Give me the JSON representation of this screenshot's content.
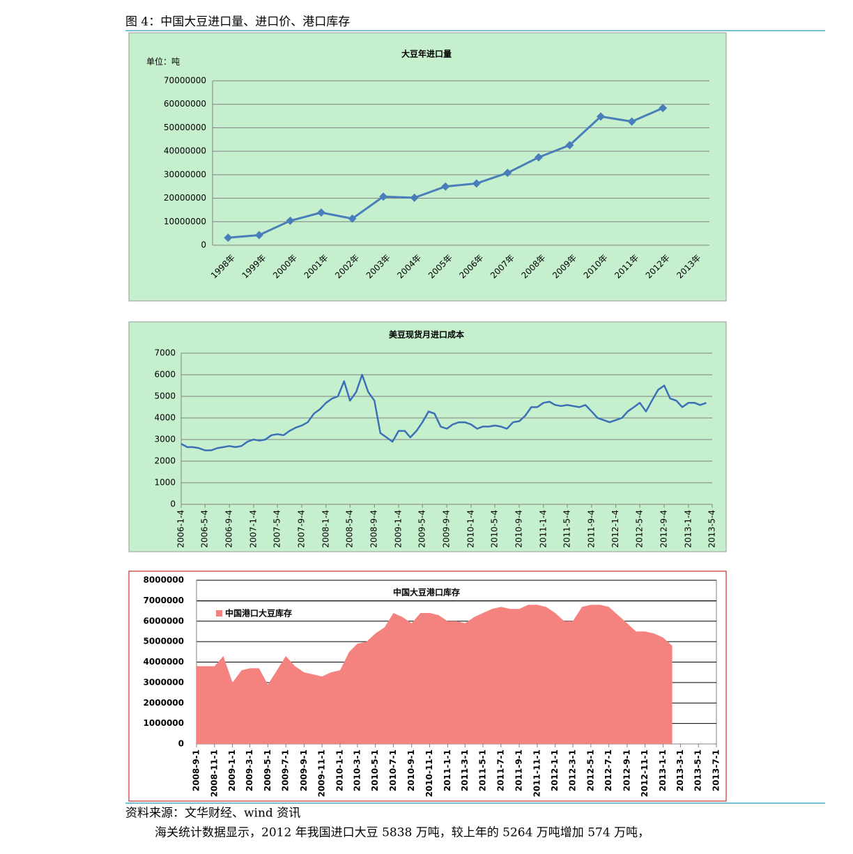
{
  "header": {
    "title": "图 4：中国大豆进口量、进口价、港口库存"
  },
  "chart_data": [
    {
      "type": "line",
      "title": "大豆年进口量",
      "unit": "单位：吨",
      "color": "#4a7ebb",
      "categories": [
        "1998年",
        "1999年",
        "2000年",
        "2001年",
        "2002年",
        "2003年",
        "2004年",
        "2005年",
        "2006年",
        "2007年",
        "2008年",
        "2009年",
        "2010年",
        "2011年",
        "2012年",
        "2013年"
      ],
      "values": [
        3200000,
        4300000,
        10400000,
        13900000,
        11300000,
        20700000,
        20200000,
        25000000,
        26300000,
        30800000,
        37400000,
        42600000,
        54800000,
        52640000,
        58380000,
        null
      ],
      "ylim": [
        0,
        70000000
      ],
      "yticks": [
        0,
        10000000,
        20000000,
        30000000,
        40000000,
        50000000,
        60000000,
        70000000
      ],
      "grid": true
    },
    {
      "type": "line",
      "title": "美豆现货月进口成本",
      "color": "#3b6fb6",
      "x": [
        "2006-1-4",
        "2006-2-4",
        "2006-3-4",
        "2006-4-4",
        "2006-5-4",
        "2006-6-4",
        "2006-7-4",
        "2006-8-4",
        "2006-9-4",
        "2006-10-4",
        "2006-11-4",
        "2006-12-4",
        "2007-1-4",
        "2007-2-4",
        "2007-3-4",
        "2007-4-4",
        "2007-5-4",
        "2007-6-4",
        "2007-7-4",
        "2007-8-4",
        "2007-9-4",
        "2007-10-4",
        "2007-11-4",
        "2007-12-4",
        "2008-1-4",
        "2008-2-4",
        "2008-3-4",
        "2008-4-4",
        "2008-5-4",
        "2008-6-4",
        "2008-7-4",
        "2008-8-4",
        "2008-9-4",
        "2008-10-4",
        "2008-11-4",
        "2008-12-4",
        "2009-1-4",
        "2009-2-4",
        "2009-3-4",
        "2009-4-4",
        "2009-5-4",
        "2009-6-4",
        "2009-7-4",
        "2009-8-4",
        "2009-9-4",
        "2009-10-4",
        "2009-11-4",
        "2009-12-4",
        "2010-1-4",
        "2010-2-4",
        "2010-3-4",
        "2010-4-4",
        "2010-5-4",
        "2010-6-4",
        "2010-7-4",
        "2010-8-4",
        "2010-9-4",
        "2010-10-4",
        "2010-11-4",
        "2010-12-4",
        "2011-1-4",
        "2011-2-4",
        "2011-3-4",
        "2011-4-4",
        "2011-5-4",
        "2011-6-4",
        "2011-7-4",
        "2011-8-4",
        "2011-9-4",
        "2011-10-4",
        "2011-11-4",
        "2011-12-4",
        "2012-1-4",
        "2012-2-4",
        "2012-3-4",
        "2012-4-4",
        "2012-5-4",
        "2012-6-4",
        "2012-7-4",
        "2012-8-4",
        "2012-9-4",
        "2012-10-4",
        "2012-11-4",
        "2012-12-4",
        "2013-1-4",
        "2013-2-4",
        "2013-3-4",
        "2013-4-4"
      ],
      "values": [
        2800,
        2650,
        2650,
        2600,
        2500,
        2500,
        2600,
        2650,
        2700,
        2650,
        2700,
        2900,
        3000,
        2950,
        3000,
        3200,
        3250,
        3200,
        3400,
        3550,
        3650,
        3800,
        4200,
        4400,
        4700,
        4900,
        5000,
        5700,
        4800,
        5200,
        6000,
        5200,
        4800,
        3300,
        3100,
        2900,
        3400,
        3400,
        3100,
        3400,
        3800,
        4300,
        4200,
        3600,
        3500,
        3700,
        3800,
        3800,
        3700,
        3500,
        3600,
        3600,
        3650,
        3600,
        3500,
        3800,
        3850,
        4100,
        4500,
        4500,
        4700,
        4750,
        4600,
        4550,
        4600,
        4550,
        4500,
        4600,
        4300,
        4000,
        3900,
        3800,
        3900,
        4000,
        4300,
        4500,
        4700,
        4300,
        4800,
        5300,
        5500,
        4900,
        4800,
        4500,
        4700,
        4700,
        4600,
        4700
      ],
      "xlim": [
        "2006-1-4",
        "2013-5-4"
      ],
      "xticks": [
        "2006-1-4",
        "2006-5-4",
        "2006-9-4",
        "2007-1-4",
        "2007-5-4",
        "2007-9-4",
        "2008-1-4",
        "2008-5-4",
        "2008-9-4",
        "2009-1-4",
        "2009-5-4",
        "2009-9-4",
        "2010-1-4",
        "2010-5-4",
        "2010-9-4",
        "2011-1-4",
        "2011-5-4",
        "2011-9-4",
        "2012-1-4",
        "2012-5-4",
        "2012-9-4",
        "2013-1-4",
        "2013-5-4"
      ],
      "ylim": [
        0,
        7000
      ],
      "yticks": [
        0,
        1000,
        2000,
        3000,
        4000,
        5000,
        6000,
        7000
      ],
      "grid": true
    },
    {
      "type": "area",
      "title": "中国大豆港口库存",
      "x": [
        "2008-9-1",
        "2008-10-1",
        "2008-11-1",
        "2008-12-1",
        "2009-1-1",
        "2009-2-1",
        "2009-3-1",
        "2009-4-1",
        "2009-5-1",
        "2009-6-1",
        "2009-7-1",
        "2009-8-1",
        "2009-9-1",
        "2009-10-1",
        "2009-11-1",
        "2009-12-1",
        "2010-1-1",
        "2010-2-1",
        "2010-3-1",
        "2010-4-1",
        "2010-5-1",
        "2010-6-1",
        "2010-7-1",
        "2010-8-1",
        "2010-9-1",
        "2010-10-1",
        "2010-11-1",
        "2010-12-1",
        "2011-1-1",
        "2011-2-1",
        "2011-3-1",
        "2011-4-1",
        "2011-5-1",
        "2011-6-1",
        "2011-7-1",
        "2011-8-1",
        "2011-9-1",
        "2011-10-1",
        "2011-11-1",
        "2011-12-1",
        "2012-1-1",
        "2012-2-1",
        "2012-3-1",
        "2012-4-1",
        "2012-5-1",
        "2012-6-1",
        "2012-7-1",
        "2012-8-1",
        "2012-9-1",
        "2012-10-1",
        "2012-11-1",
        "2012-12-1",
        "2013-1-1",
        "2013-2-1"
      ],
      "series": [
        {
          "name": "中国港口大豆库存",
          "color": "#f4827e",
          "values": [
            3800000,
            3800000,
            3800000,
            4300000,
            3000000,
            3600000,
            3700000,
            3700000,
            2900000,
            3600000,
            4300000,
            3800000,
            3500000,
            3400000,
            3300000,
            3500000,
            3600000,
            4500000,
            4900000,
            5000000,
            5400000,
            5700000,
            6400000,
            6200000,
            5900000,
            6400000,
            6400000,
            6300000,
            6000000,
            6000000,
            5900000,
            6200000,
            6400000,
            6600000,
            6700000,
            6600000,
            6600000,
            6800000,
            6800000,
            6700000,
            6400000,
            6000000,
            6000000,
            6700000,
            6800000,
            6800000,
            6700000,
            6300000,
            5900000,
            5500000,
            5500000,
            5400000,
            5200000,
            4800000
          ]
        }
      ],
      "xlim": [
        "2008-9-1",
        "2013-7-1"
      ],
      "xticks": [
        "2008-9-1",
        "2008-11-1",
        "2009-1-1",
        "2009-3-1",
        "2009-5-1",
        "2009-7-1",
        "2009-9-1",
        "2009-11-1",
        "2010-1-1",
        "2010-3-1",
        "2010-5-1",
        "2010-7-1",
        "2010-9-1",
        "2010-11-1",
        "2011-1-1",
        "2011-3-1",
        "2011-5-1",
        "2011-7-1",
        "2011-9-1",
        "2011-11-1",
        "2012-1-1",
        "2012-3-1",
        "2012-5-1",
        "2012-7-1",
        "2012-9-1",
        "2012-11-1",
        "2013-1-1",
        "2013-3-1",
        "2013-5-1",
        "2013-7-1"
      ],
      "ylim": [
        0,
        8000000
      ],
      "yticks": [
        0,
        1000000,
        2000000,
        3000000,
        4000000,
        5000000,
        6000000,
        7000000,
        8000000
      ],
      "grid": true
    }
  ],
  "source": "资料来源：文华财经、wind 资讯",
  "body": "海关统计数据显示，2012 年我国进口大豆 5838 万吨，较上年的 5264 万吨增加 574 万吨，"
}
